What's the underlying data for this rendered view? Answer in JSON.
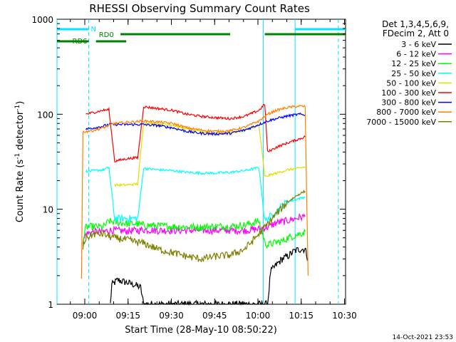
{
  "header": {
    "title": "RHESSI Observing Summary Count Rates"
  },
  "info": {
    "line1": "Det 1,3,4,5,6,9,",
    "line2": "FDecim 2, Att 0"
  },
  "footer": {
    "timestamp": "14-Oct-2021 23:53"
  },
  "chart_data": {
    "type": "line",
    "title": "RHESSI Observing Summary Count Rates",
    "xlabel": "Start Time (28-May-10 08:50:22)",
    "ylabel_parts": {
      "base": "Count Rate (s",
      "sup1": "-1",
      "mid": " detector",
      "sup2": "-1",
      "end": ")"
    },
    "x_unit": "minutes since 08:50:22",
    "xlim": [
      0,
      100
    ],
    "ylim": [
      1,
      1000
    ],
    "yscale": "log",
    "x_ticks": [
      {
        "value": 9.633,
        "label": "09:00"
      },
      {
        "value": 24.633,
        "label": "09:15"
      },
      {
        "value": 39.633,
        "label": "09:30"
      },
      {
        "value": 54.633,
        "label": "09:45"
      },
      {
        "value": 69.633,
        "label": "10:00"
      },
      {
        "value": 84.633,
        "label": "10:15"
      },
      {
        "value": 99.633,
        "label": "10:30"
      }
    ],
    "y_ticks": [
      {
        "value": 1,
        "label": "1"
      },
      {
        "value": 10,
        "label": "10"
      },
      {
        "value": 100,
        "label": "100"
      },
      {
        "value": 1000,
        "label": "1000"
      }
    ],
    "legend_position": "right",
    "series": [
      {
        "name": "3 - 6 keV",
        "color": "#000000",
        "points": [
          [
            18.5,
            1.0
          ],
          [
            19,
            1.6
          ],
          [
            21,
            1.8
          ],
          [
            24,
            1.7
          ],
          [
            27,
            1.6
          ],
          [
            29,
            1.5
          ],
          [
            30,
            1.0
          ],
          [
            73,
            1.0
          ],
          [
            74,
            2.2
          ],
          [
            76,
            2.6
          ],
          [
            78,
            3.0
          ],
          [
            80,
            3.2
          ],
          [
            82,
            3.6
          ],
          [
            84,
            3.8
          ],
          [
            86,
            3.8
          ],
          [
            87,
            3.0
          ]
        ]
      },
      {
        "name": "6 - 12 keV",
        "color": "#ff00ff",
        "points": [
          [
            9,
            4.5
          ],
          [
            10,
            5.5
          ],
          [
            13,
            5.8
          ],
          [
            16,
            5.8
          ],
          [
            18,
            6.0
          ],
          [
            20,
            6.0
          ],
          [
            24,
            5.9
          ],
          [
            28,
            6.0
          ],
          [
            30,
            6.1
          ],
          [
            35,
            6.0
          ],
          [
            40,
            6.0
          ],
          [
            45,
            6.0
          ],
          [
            50,
            6.0
          ],
          [
            55,
            6.0
          ],
          [
            60,
            6.0
          ],
          [
            65,
            6.0
          ],
          [
            70,
            6.2
          ],
          [
            73,
            6.5
          ],
          [
            76,
            7.2
          ],
          [
            80,
            7.6
          ],
          [
            84,
            8.2
          ],
          [
            86,
            8.4
          ]
        ]
      },
      {
        "name": "12 - 25 keV",
        "color": "#00ff00",
        "points": [
          [
            9,
            4.5
          ],
          [
            10,
            6.5
          ],
          [
            13,
            6.6
          ],
          [
            16,
            6.5
          ],
          [
            18,
            7.5
          ],
          [
            20,
            7.3
          ],
          [
            24,
            7.1
          ],
          [
            28,
            7.0
          ],
          [
            30,
            6.8
          ],
          [
            35,
            6.7
          ],
          [
            40,
            6.6
          ],
          [
            45,
            6.5
          ],
          [
            50,
            6.5
          ],
          [
            55,
            6.6
          ],
          [
            60,
            6.6
          ],
          [
            65,
            6.8
          ],
          [
            70,
            7.5
          ],
          [
            72,
            4.5
          ],
          [
            73,
            4.2
          ],
          [
            76,
            4.5
          ],
          [
            78,
            4.6
          ],
          [
            80,
            5.0
          ],
          [
            84,
            5.5
          ],
          [
            86,
            5.8
          ]
        ]
      },
      {
        "name": "25 - 50 keV",
        "color": "#00ffff",
        "points": [
          [
            10,
            25.0
          ],
          [
            13,
            25.5
          ],
          [
            16,
            26.0
          ],
          [
            18,
            27.5
          ],
          [
            20,
            8.0
          ],
          [
            24,
            8.0
          ],
          [
            28,
            8.0
          ],
          [
            30,
            27.0
          ],
          [
            35,
            26.0
          ],
          [
            40,
            25.5
          ],
          [
            45,
            24.5
          ],
          [
            50,
            24.0
          ],
          [
            55,
            24.0
          ],
          [
            60,
            24.5
          ],
          [
            65,
            25.5
          ],
          [
            70,
            27.5
          ],
          [
            72,
            7.5
          ],
          [
            73,
            8.0
          ],
          [
            76,
            9.5
          ],
          [
            78,
            11.0
          ],
          [
            80,
            12.0
          ],
          [
            84,
            13.0
          ],
          [
            86,
            13.5
          ]
        ]
      },
      {
        "name": "50 - 100 keV",
        "color": "#e0e000",
        "points": [
          [
            20,
            18.0
          ],
          [
            24,
            18.0
          ],
          [
            28,
            18.5
          ],
          [
            30,
            80.0
          ],
          [
            35,
            79.0
          ],
          [
            40,
            77.0
          ],
          [
            45,
            70.0
          ],
          [
            50,
            65.0
          ],
          [
            55,
            63.0
          ],
          [
            60,
            63.0
          ],
          [
            65,
            68.0
          ],
          [
            70,
            76.0
          ],
          [
            72,
            22.0
          ],
          [
            76,
            24.0
          ],
          [
            80,
            26.0
          ],
          [
            84,
            27.0
          ],
          [
            86,
            28.0
          ]
        ]
      },
      {
        "name": "100 - 300 keV",
        "color": "#ff0000",
        "points": [
          [
            10,
            100.0
          ],
          [
            13,
            105.0
          ],
          [
            16,
            110.0
          ],
          [
            18,
            112.0
          ],
          [
            20,
            32.0
          ],
          [
            24,
            34.0
          ],
          [
            28,
            35.0
          ],
          [
            30,
            120.0
          ],
          [
            35,
            115.0
          ],
          [
            40,
            110.0
          ],
          [
            45,
            100.0
          ],
          [
            50,
            95.0
          ],
          [
            55,
            92.0
          ],
          [
            60,
            90.0
          ],
          [
            65,
            95.0
          ],
          [
            70,
            110.0
          ],
          [
            72,
            128.0
          ],
          [
            73,
            40.0
          ],
          [
            76,
            45.0
          ],
          [
            80,
            50.0
          ],
          [
            84,
            55.0
          ],
          [
            86,
            58.0
          ]
        ]
      },
      {
        "name": "300 - 800 keV",
        "color": "#0000ff",
        "points": [
          [
            10,
            70.0
          ],
          [
            13,
            72.0
          ],
          [
            16,
            75.0
          ],
          [
            18,
            78.0
          ],
          [
            30,
            78.0
          ],
          [
            35,
            76.0
          ],
          [
            40,
            72.0
          ],
          [
            45,
            66.0
          ],
          [
            50,
            63.0
          ],
          [
            55,
            62.0
          ],
          [
            60,
            63.0
          ],
          [
            65,
            68.0
          ],
          [
            70,
            78.0
          ],
          [
            73,
            85.0
          ],
          [
            76,
            90.0
          ],
          [
            80,
            96.0
          ],
          [
            84,
            100.0
          ],
          [
            86,
            98.0
          ]
        ]
      },
      {
        "name": "800 - 7000 keV",
        "color": "#ff8000",
        "points": [
          [
            8.5,
            2.0
          ],
          [
            9,
            65.0
          ],
          [
            13,
            68.0
          ],
          [
            16,
            72.0
          ],
          [
            18,
            76.0
          ],
          [
            20,
            80.0
          ],
          [
            24,
            82.0
          ],
          [
            28,
            84.0
          ],
          [
            30,
            85.0
          ],
          [
            35,
            83.0
          ],
          [
            40,
            80.0
          ],
          [
            45,
            72.0
          ],
          [
            50,
            68.0
          ],
          [
            55,
            66.0
          ],
          [
            60,
            67.0
          ],
          [
            65,
            73.0
          ],
          [
            70,
            85.0
          ],
          [
            73,
            100.0
          ],
          [
            76,
            110.0
          ],
          [
            80,
            118.0
          ],
          [
            84,
            122.0
          ],
          [
            86,
            120.0
          ],
          [
            87,
            2.0
          ]
        ]
      },
      {
        "name": "7000 - 15000 keV",
        "color": "#808000",
        "points": [
          [
            9,
            4.0
          ],
          [
            10,
            5.0
          ],
          [
            13,
            5.5
          ],
          [
            16,
            5.5
          ],
          [
            18,
            5.2
          ],
          [
            20,
            5.0
          ],
          [
            24,
            4.8
          ],
          [
            28,
            4.5
          ],
          [
            30,
            4.4
          ],
          [
            35,
            3.8
          ],
          [
            40,
            3.5
          ],
          [
            45,
            3.2
          ],
          [
            50,
            3.0
          ],
          [
            55,
            3.2
          ],
          [
            60,
            3.3
          ],
          [
            65,
            3.8
          ],
          [
            70,
            5.5
          ],
          [
            73,
            7.0
          ],
          [
            76,
            9.0
          ],
          [
            80,
            12.0
          ],
          [
            84,
            14.5
          ],
          [
            86,
            15.5
          ]
        ]
      }
    ],
    "annotations": {
      "night_label": "N",
      "rd0_label": "RD0",
      "rd6_label": "RD6",
      "night_bars": [
        [
          0,
          11
        ],
        [
          82.5,
          100
        ]
      ],
      "rd0_bars": [
        [
          22,
          60
        ],
        [
          72,
          100
        ]
      ],
      "rd6_bars": [
        [
          0,
          11
        ],
        [
          13.5,
          24
        ]
      ],
      "cyan_vlines": [
        0,
        71.5,
        82.5
      ],
      "cyan_dashed_vlines": [
        11,
        97.5
      ]
    }
  }
}
